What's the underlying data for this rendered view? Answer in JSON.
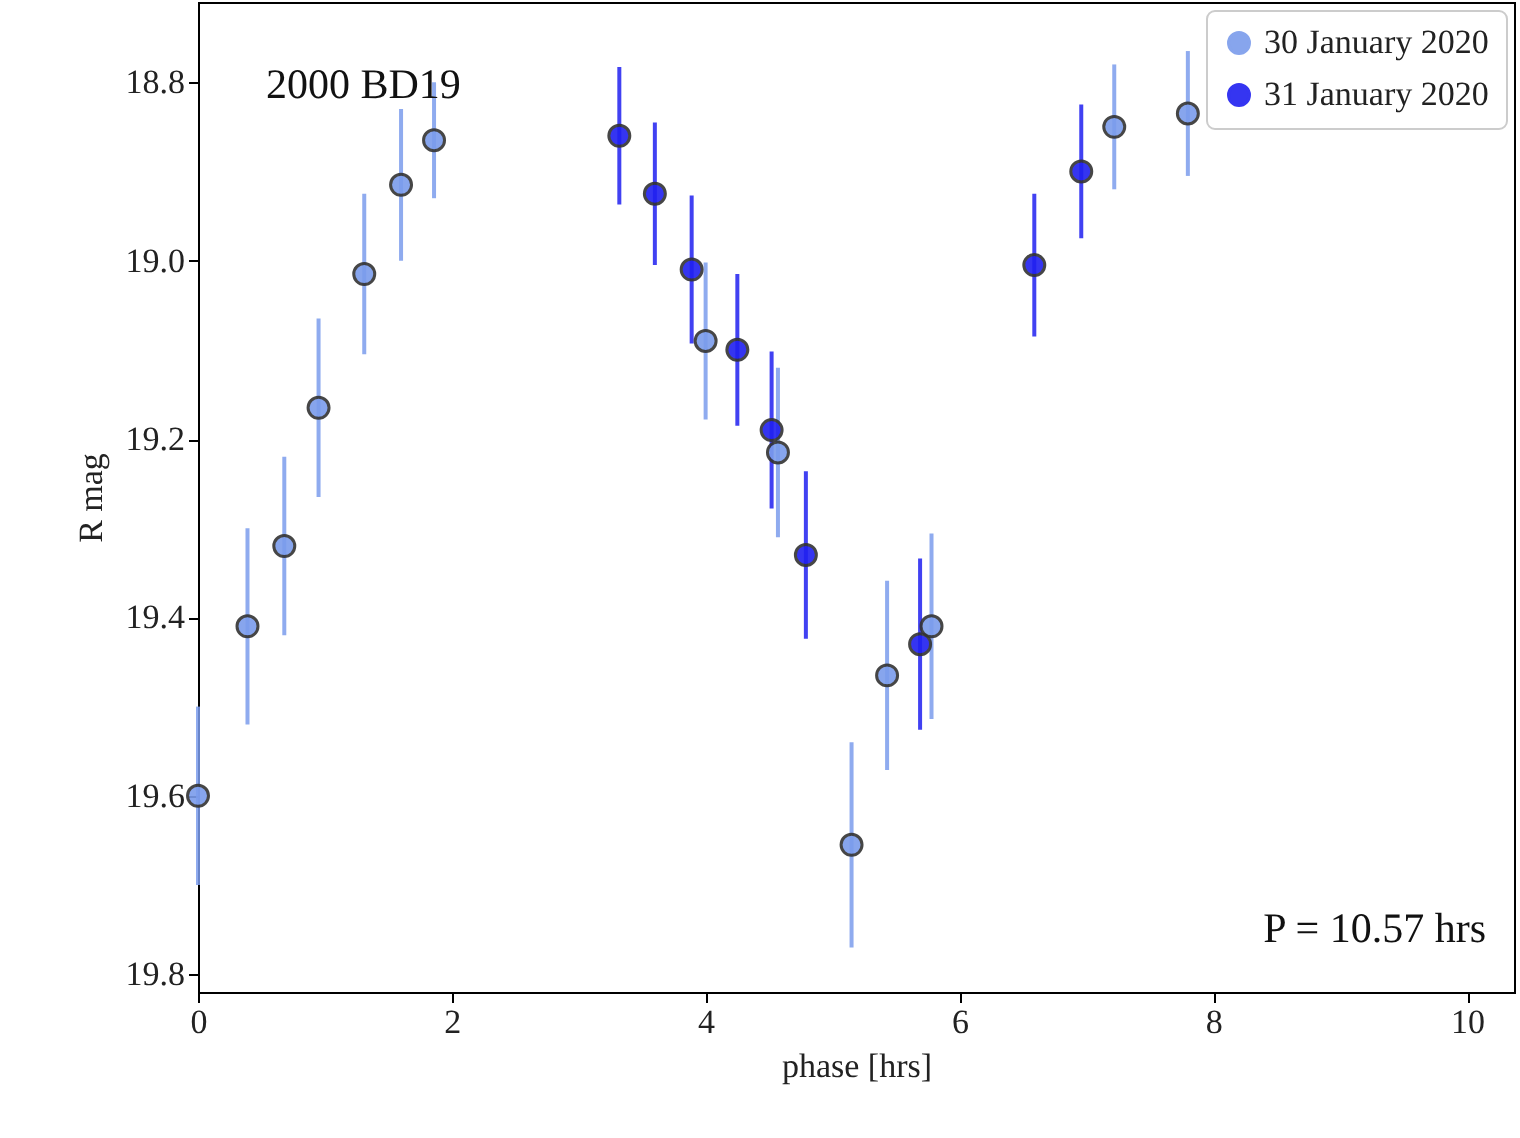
{
  "chart_data": {
    "type": "scatter",
    "xlabel": "phase [hrs]",
    "ylabel": "R mag",
    "annotations": [
      "2000 BD19",
      "P = 10.57 hrs"
    ],
    "xlim": [
      0,
      10.37
    ],
    "xticks": [
      0,
      2,
      4,
      6,
      8,
      10
    ],
    "ylim": [
      19.82,
      18.71
    ],
    "yticks": [
      18.8,
      {
        "value": 19.0,
        "label": "19.0"
      },
      19.2,
      19.4,
      19.6,
      19.8
    ],
    "marker": "circle",
    "legend": "top right",
    "grid": false,
    "series": [
      {
        "name": "30 January 2020",
        "color": "#7b9cec",
        "x": [
          0,
          0.39,
          0.68,
          0.95,
          1.31,
          1.6,
          1.86,
          4.0,
          4.57,
          5.15,
          5.43,
          5.78,
          7.22,
          7.8
        ],
        "values": [
          19.6,
          19.41,
          19.32,
          19.165,
          19.015,
          18.915,
          18.865,
          19.09,
          19.215,
          19.655,
          19.465,
          19.41,
          18.85,
          18.835
        ],
        "errors": [
          0.1,
          0.11,
          0.1,
          0.1,
          0.09,
          0.085,
          0.065,
          0.088,
          0.095,
          0.115,
          0.106,
          0.104,
          0.07,
          0.07
        ]
      },
      {
        "name": "31 January 2020",
        "color": "#2020f0",
        "x": [
          3.32,
          3.6,
          3.89,
          4.25,
          4.52,
          4.79,
          5.69,
          6.59,
          6.96
        ],
        "values": [
          18.86,
          18.925,
          19.01,
          19.1,
          19.19,
          19.33,
          19.43,
          19.005,
          18.9
        ],
        "errors": [
          0.077,
          0.08,
          0.083,
          0.085,
          0.088,
          0.094,
          0.096,
          0.08,
          0.075
        ]
      }
    ]
  }
}
